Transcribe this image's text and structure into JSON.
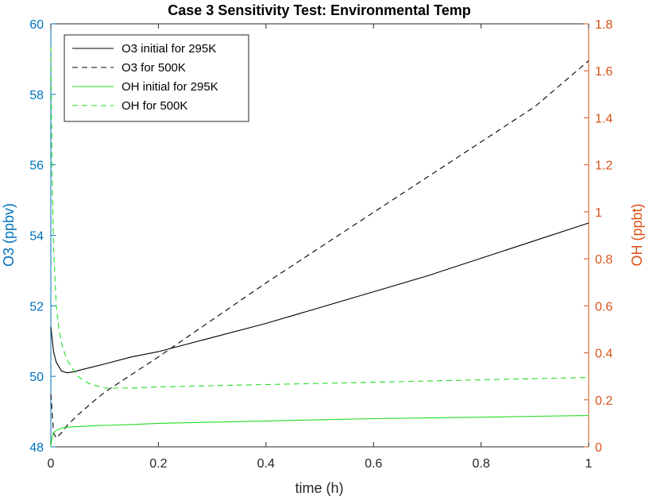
{
  "chart_data": {
    "type": "line",
    "title": "Case 3 Sensitivity Test: Environmental Temp",
    "xlabel": "time (h)",
    "ylabel_left": "O3 (ppbv)",
    "ylabel_right": "OH (ppbt)",
    "xlim": [
      0,
      1
    ],
    "ylim_left": [
      48,
      60
    ],
    "ylim_right": [
      0,
      1.8
    ],
    "x_ticks": [
      "0",
      "0.2",
      "0.4",
      "0.6",
      "0.8",
      "1"
    ],
    "y_left_ticks": [
      "48",
      "50",
      "52",
      "54",
      "56",
      "58",
      "60"
    ],
    "y_right_ticks": [
      "0",
      "0.2",
      "0.4",
      "0.6",
      "0.8",
      "1",
      "1.2",
      "1.4",
      "1.6",
      "1.8"
    ],
    "left_axis_color": "#0072BD",
    "right_axis_color": "#D95319",
    "legend_position": "top-left",
    "grid": false,
    "series": [
      {
        "name": "O3 initial for 295K",
        "axis": "left",
        "color": "#000000",
        "dash": "solid",
        "x": [
          0,
          0.005,
          0.01,
          0.02,
          0.03,
          0.04,
          0.06,
          0.1,
          0.15,
          0.2,
          0.3,
          0.4,
          0.5,
          0.6,
          0.7,
          0.8,
          0.9,
          1.0
        ],
        "y": [
          51.4,
          50.7,
          50.4,
          50.15,
          50.1,
          50.12,
          50.2,
          50.35,
          50.55,
          50.7,
          51.1,
          51.5,
          51.95,
          52.4,
          52.85,
          53.35,
          53.85,
          54.35
        ]
      },
      {
        "name": "O3 for 500K",
        "axis": "left",
        "color": "#000000",
        "dash": "dashed",
        "x": [
          0,
          0.005,
          0.01,
          0.02,
          0.03,
          0.05,
          0.08,
          0.1,
          0.15,
          0.2,
          0.3,
          0.4,
          0.5,
          0.6,
          0.7,
          0.8,
          0.9,
          1.0
        ],
        "y": [
          49.5,
          48.4,
          48.25,
          48.4,
          48.6,
          48.9,
          49.3,
          49.55,
          50.05,
          50.55,
          51.6,
          52.65,
          53.65,
          54.65,
          55.65,
          56.65,
          57.65,
          58.95
        ]
      },
      {
        "name": "OH initial for 295K",
        "axis": "right",
        "color": "#22DD22",
        "dash": "solid",
        "x": [
          0,
          0.002,
          0.005,
          0.01,
          0.02,
          0.04,
          0.08,
          0.15,
          0.2,
          0.3,
          0.4,
          0.5,
          0.6,
          0.7,
          0.8,
          0.9,
          1.0
        ],
        "y": [
          0.0,
          0.04,
          0.06,
          0.07,
          0.08,
          0.085,
          0.09,
          0.095,
          0.1,
          0.105,
          0.11,
          0.115,
          0.12,
          0.123,
          0.126,
          0.13,
          0.133
        ]
      },
      {
        "name": "OH for 500K",
        "axis": "right",
        "color": "#22DD22",
        "dash": "dashed",
        "x": [
          0,
          0.002,
          0.005,
          0.01,
          0.015,
          0.02,
          0.03,
          0.05,
          0.07,
          0.1,
          0.15,
          0.2,
          0.3,
          0.4,
          0.5,
          0.6,
          0.7,
          0.8,
          0.9,
          1.0
        ],
        "y": [
          1.7,
          1.2,
          0.85,
          0.6,
          0.5,
          0.44,
          0.37,
          0.3,
          0.27,
          0.25,
          0.25,
          0.255,
          0.26,
          0.265,
          0.27,
          0.275,
          0.28,
          0.285,
          0.29,
          0.295
        ]
      }
    ]
  }
}
